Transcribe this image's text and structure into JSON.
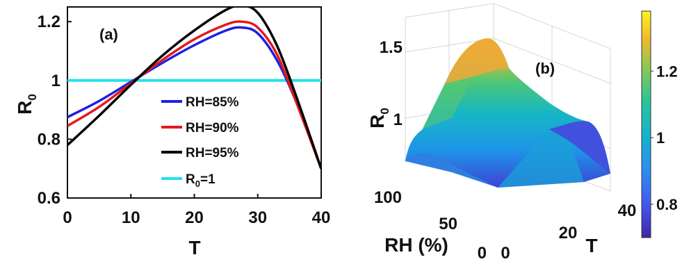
{
  "chart_data": [
    {
      "type": "line",
      "panel_label": "(a)",
      "xlabel": "T",
      "ylabel": "R",
      "ylabel_subscript": "0",
      "xlim": [
        0,
        40
      ],
      "ylim": [
        0.6,
        1.25
      ],
      "xticks": [
        "0",
        "10",
        "20",
        "30",
        "40"
      ],
      "yticks": [
        "0.6",
        "0.8",
        "1",
        "1.2"
      ],
      "x": [
        0,
        5,
        10,
        15,
        20,
        25,
        27.5,
        30,
        33,
        36,
        40
      ],
      "series": [
        {
          "name": "RH=85%",
          "color": "#1f1fe6",
          "values": [
            0.875,
            0.93,
            0.995,
            1.06,
            1.12,
            1.17,
            1.18,
            1.16,
            1.07,
            0.93,
            0.7
          ]
        },
        {
          "name": "RH=90%",
          "color": "#e31a1a",
          "values": [
            0.845,
            0.91,
            0.99,
            1.07,
            1.14,
            1.19,
            1.2,
            1.18,
            1.09,
            0.93,
            0.7
          ]
        },
        {
          "name": "RH=95%",
          "color": "#000000",
          "values": [
            0.78,
            0.88,
            0.985,
            1.085,
            1.17,
            1.24,
            1.255,
            1.23,
            1.12,
            0.95,
            0.7
          ]
        },
        {
          "name_prefix": "R",
          "name_subscript": "0",
          "name_suffix": "=1",
          "color": "#22e0ee",
          "values": [
            1,
            1,
            1,
            1,
            1,
            1,
            1,
            1,
            1,
            1,
            1
          ]
        }
      ],
      "legend_position": "lower-center"
    },
    {
      "type": "surface",
      "panel_label": "(b)",
      "xlabel": "T",
      "ylabel": "RH (%)",
      "zlabel": "R",
      "zlabel_subscript": "0",
      "x_range": [
        0,
        40
      ],
      "y_range": [
        0,
        100
      ],
      "xticks": [
        "0",
        "20",
        "40"
      ],
      "yticks": [
        "0",
        "50",
        "100"
      ],
      "zticks": [
        "1",
        "1.5"
      ],
      "z_range": [
        0.7,
        1.4
      ],
      "colormap": "parula",
      "colorbar": {
        "ticks": [
          "0.8",
          "1",
          "1.2"
        ],
        "range": [
          0.7,
          1.38
        ]
      }
    }
  ]
}
